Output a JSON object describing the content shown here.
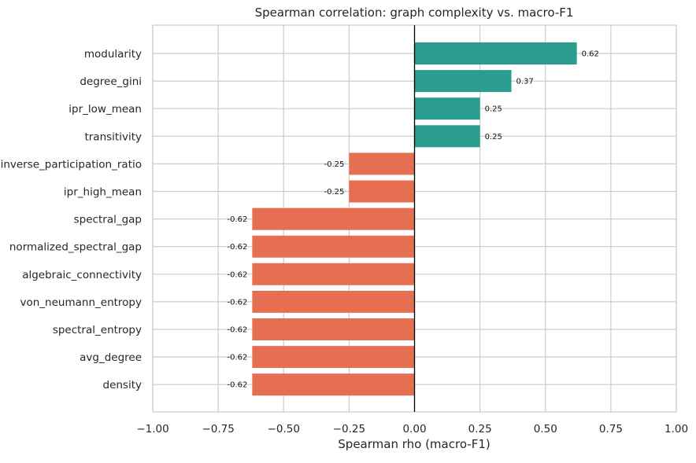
{
  "chart_data": {
    "type": "bar",
    "orientation": "horizontal",
    "title": "Spearman correlation: graph complexity vs. macro-F1",
    "xlabel": "Spearman rho (macro-F1)",
    "ylabel": "",
    "xlim": [
      -1.0,
      1.0
    ],
    "xticks": [
      -1.0,
      -0.75,
      -0.5,
      -0.25,
      0.0,
      0.25,
      0.5,
      0.75,
      1.0
    ],
    "xtick_labels": [
      "−1.00",
      "−0.75",
      "−0.50",
      "−0.25",
      "0.00",
      "0.25",
      "0.50",
      "0.75",
      "1.00"
    ],
    "grid": true,
    "categories": [
      "modularity",
      "degree_gini",
      "ipr_low_mean",
      "transitivity",
      "inverse_participation_ratio",
      "ipr_high_mean",
      "spectral_gap",
      "normalized_spectral_gap",
      "algebraic_connectivity",
      "von_neumann_entropy",
      "spectral_entropy",
      "avg_degree",
      "density"
    ],
    "values": [
      0.62,
      0.37,
      0.25,
      0.25,
      -0.25,
      -0.25,
      -0.62,
      -0.62,
      -0.62,
      -0.62,
      -0.62,
      -0.62,
      -0.62
    ],
    "value_labels": [
      "0.62",
      "0.37",
      "0.25",
      "0.25",
      "-0.25",
      "-0.25",
      "-0.62",
      "-0.62",
      "-0.62",
      "-0.62",
      "-0.62",
      "-0.62",
      "-0.62"
    ],
    "colors": {
      "positive": "#2a9d8f",
      "negative": "#e76f51"
    }
  }
}
